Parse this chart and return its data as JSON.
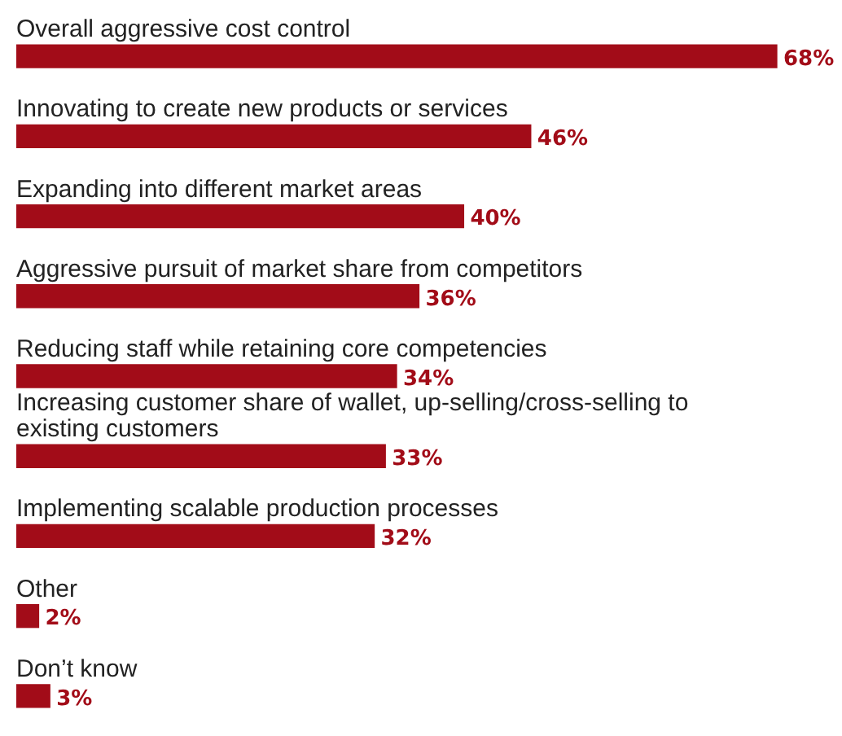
{
  "chart_data": {
    "type": "bar",
    "orientation": "horizontal",
    "categories": [
      "Overall aggressive cost control",
      "Innovating to create new products or services",
      "Expanding into different market areas",
      "Aggressive pursuit of market share from competitors",
      "Reducing staff while retaining core competencies",
      "Increasing customer share of wallet, up-selling/cross-selling to existing customers",
      "Implementing scalable production processes",
      "Other",
      "Don’t know"
    ],
    "values": [
      68,
      46,
      40,
      36,
      34,
      33,
      32,
      2,
      3
    ],
    "value_labels": [
      "68%",
      "46%",
      "40%",
      "36%",
      "34%",
      "33%",
      "32%",
      "2%",
      "3%"
    ],
    "color": "#a20c18"
  }
}
